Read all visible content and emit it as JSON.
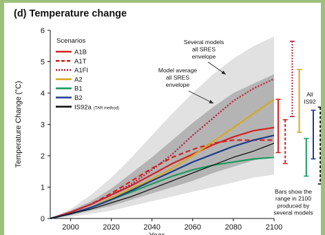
{
  "chart_data": {
    "type": "line",
    "title": "(d) Temperature change",
    "xlabel": "Year",
    "ylabel": "Temperature Change (°C)",
    "xlim": [
      1990,
      2100
    ],
    "ylim": [
      0,
      6
    ],
    "xticks": [
      2000,
      2020,
      2040,
      2060,
      2080,
      2100
    ],
    "yticks": [
      0,
      1,
      2,
      3,
      4,
      5,
      6
    ],
    "legend_title": "Scenarios",
    "series": [
      {
        "name": "A1B",
        "color": "#d62020",
        "dash": "solid",
        "x": [
          1990,
          2000,
          2010,
          2020,
          2030,
          2040,
          2050,
          2060,
          2070,
          2080,
          2090,
          2100
        ],
        "y": [
          0,
          0.2,
          0.45,
          0.75,
          1.05,
          1.4,
          1.75,
          2.05,
          2.35,
          2.6,
          2.8,
          2.9
        ]
      },
      {
        "name": "A1T",
        "color": "#d62020",
        "dash": "dashed",
        "x": [
          1990,
          2000,
          2010,
          2020,
          2030,
          2040,
          2050,
          2060,
          2070,
          2080,
          2090,
          2100
        ],
        "y": [
          0,
          0.2,
          0.45,
          0.8,
          1.2,
          1.6,
          1.95,
          2.2,
          2.4,
          2.5,
          2.5,
          2.5
        ]
      },
      {
        "name": "A1FI",
        "color": "#c0203a",
        "dash": "dotted",
        "x": [
          1990,
          2000,
          2010,
          2020,
          2030,
          2040,
          2050,
          2060,
          2070,
          2080,
          2090,
          2100
        ],
        "y": [
          0,
          0.2,
          0.45,
          0.75,
          1.1,
          1.55,
          2.05,
          2.65,
          3.2,
          3.75,
          4.15,
          4.45
        ]
      },
      {
        "name": "A2",
        "color": "#d8a81c",
        "dash": "solid",
        "x": [
          1990,
          2000,
          2010,
          2020,
          2030,
          2040,
          2050,
          2060,
          2070,
          2080,
          2090,
          2100
        ],
        "y": [
          0,
          0.15,
          0.35,
          0.65,
          0.95,
          1.25,
          1.6,
          2.0,
          2.45,
          2.9,
          3.35,
          3.8
        ]
      },
      {
        "name": "B1",
        "color": "#1a9a60",
        "dash": "solid",
        "x": [
          1990,
          2000,
          2010,
          2020,
          2030,
          2040,
          2050,
          2060,
          2070,
          2080,
          2090,
          2100
        ],
        "y": [
          0,
          0.15,
          0.35,
          0.6,
          0.85,
          1.1,
          1.35,
          1.55,
          1.7,
          1.8,
          1.9,
          1.95
        ]
      },
      {
        "name": "B2",
        "color": "#1c3c8e",
        "dash": "solid",
        "x": [
          1990,
          2000,
          2010,
          2020,
          2030,
          2040,
          2050,
          2060,
          2070,
          2080,
          2090,
          2100
        ],
        "y": [
          0,
          0.15,
          0.35,
          0.6,
          0.9,
          1.2,
          1.5,
          1.8,
          2.05,
          2.3,
          2.5,
          2.65
        ]
      },
      {
        "name": "IS92a",
        "name_note": "(TAR method)",
        "color": "#111111",
        "dash": "solid",
        "x": [
          1990,
          2000,
          2010,
          2020,
          2030,
          2040,
          2050,
          2060,
          2070,
          2080,
          2090,
          2100
        ],
        "y": [
          0,
          0.15,
          0.3,
          0.5,
          0.7,
          0.95,
          1.2,
          1.45,
          1.7,
          1.95,
          2.15,
          2.4
        ]
      }
    ],
    "envelope_outer": {
      "color": "#e1e1e1",
      "x": [
        1990,
        2000,
        2010,
        2020,
        2030,
        2040,
        2050,
        2060,
        2070,
        2080,
        2090,
        2100
      ],
      "lower": [
        0,
        0.05,
        0.15,
        0.25,
        0.4,
        0.55,
        0.7,
        0.85,
        1.0,
        1.15,
        1.3,
        1.4
      ],
      "upper": [
        0,
        0.3,
        0.75,
        1.3,
        1.95,
        2.65,
        3.35,
        4.0,
        4.6,
        5.1,
        5.5,
        5.8
      ]
    },
    "envelope_inner": {
      "color": "#b4b4b4",
      "x": [
        1990,
        2000,
        2010,
        2020,
        2030,
        2040,
        2050,
        2060,
        2070,
        2080,
        2090,
        2100
      ],
      "lower": [
        0,
        0.1,
        0.25,
        0.4,
        0.6,
        0.8,
        1.0,
        1.2,
        1.45,
        1.65,
        1.85,
        2.0
      ],
      "upper": [
        0,
        0.25,
        0.55,
        0.95,
        1.45,
        1.95,
        2.5,
        3.05,
        3.55,
        4.0,
        4.3,
        4.6
      ]
    },
    "range_bars_2100": [
      {
        "name": "A1B",
        "color": "#d62020",
        "dash": "solid",
        "low": 2.1,
        "high": 3.8
      },
      {
        "name": "A1T",
        "color": "#d62020",
        "dash": "dashed",
        "low": 1.75,
        "high": 3.15
      },
      {
        "name": "A1FI",
        "color": "#c0203a",
        "dash": "dotted",
        "low": 3.25,
        "high": 5.65
      },
      {
        "name": "A2",
        "color": "#d8a81c",
        "dash": "solid",
        "low": 2.75,
        "high": 4.75
      },
      {
        "name": "B1",
        "color": "#1a9a60",
        "dash": "solid",
        "low": 1.35,
        "high": 2.55
      },
      {
        "name": "B2",
        "color": "#1c3c8e",
        "dash": "solid",
        "low": 1.9,
        "high": 3.45
      },
      {
        "name": "IS92",
        "color": "#111111",
        "dash": "dashed",
        "low": 1.1,
        "high": 3.55
      }
    ],
    "annotations": {
      "several_models": [
        "Several models",
        "all SRES",
        "envelope"
      ],
      "model_average": [
        "Model average",
        "all SRES",
        "envelope"
      ],
      "all_is92": [
        "All",
        "IS92"
      ],
      "bars_note": [
        "Bars show the",
        "range in 2100",
        "produced by",
        "several models"
      ]
    }
  }
}
